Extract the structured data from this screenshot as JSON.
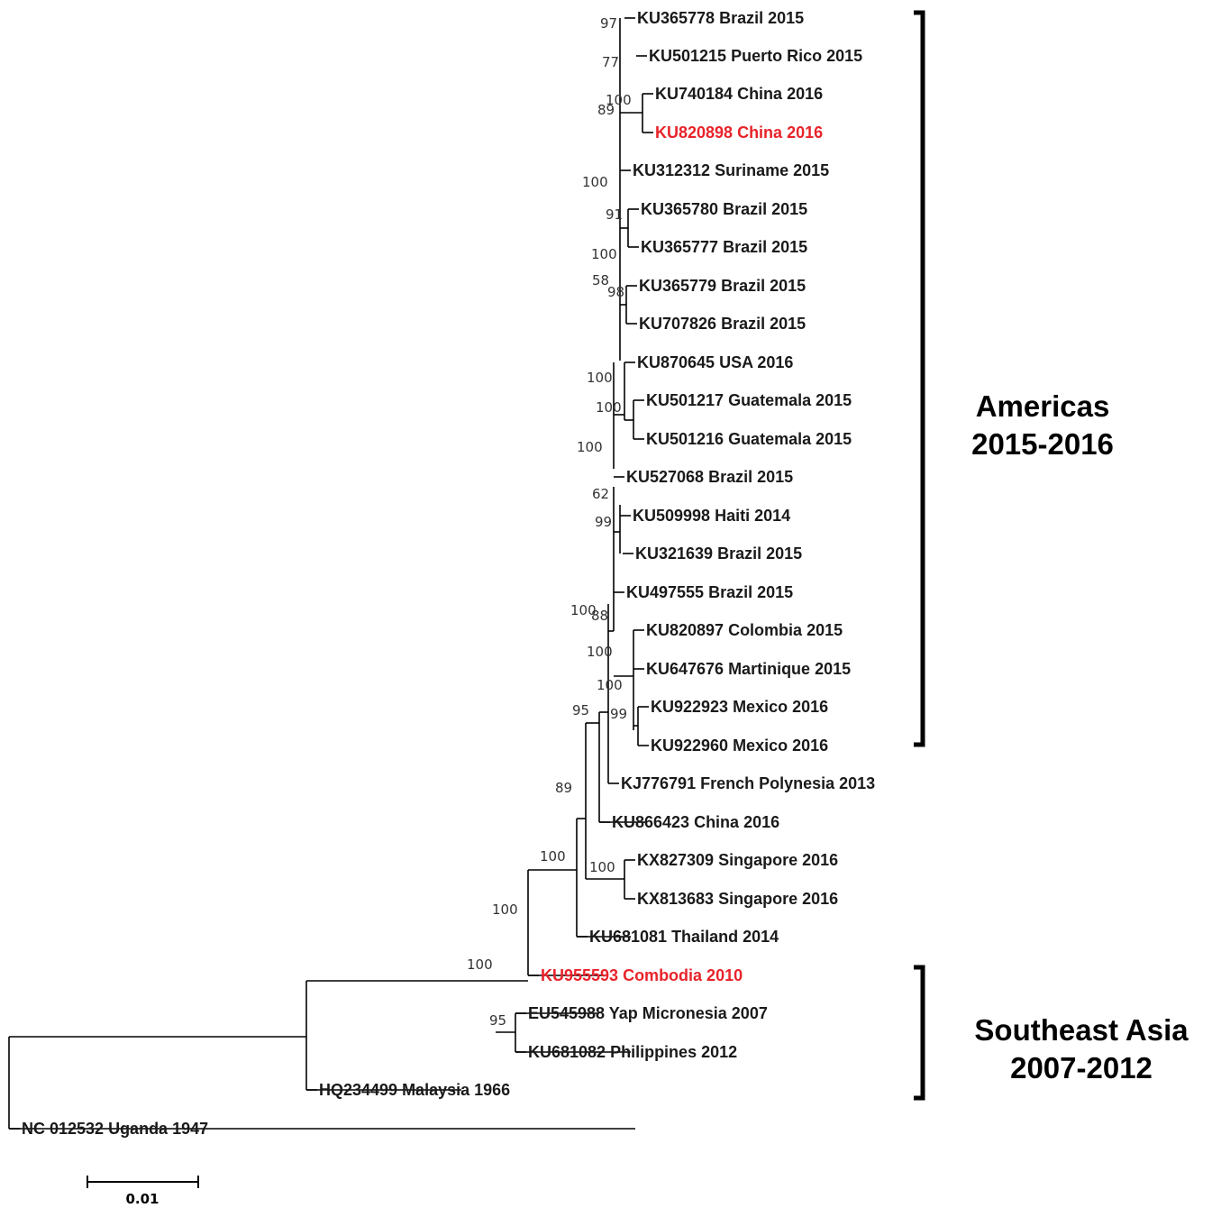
{
  "colors": {
    "default_label": "#1a1a1a",
    "highlight_label": "#e8232a",
    "branch": "#000000"
  },
  "taxa": [
    {
      "id": "KU365778",
      "label": "KU365778 Brazil 2015",
      "highlight": false
    },
    {
      "id": "KU501215",
      "label": "KU501215 Puerto Rico 2015",
      "highlight": false
    },
    {
      "id": "KU740184",
      "label": "KU740184 China 2016",
      "highlight": false
    },
    {
      "id": "KU820898",
      "label": "KU820898 China 2016",
      "highlight": true
    },
    {
      "id": "KU312312",
      "label": "KU312312 Suriname 2015",
      "highlight": false
    },
    {
      "id": "KU365780",
      "label": "KU365780 Brazil 2015",
      "highlight": false
    },
    {
      "id": "KU365777",
      "label": "KU365777 Brazil 2015",
      "highlight": false
    },
    {
      "id": "KU365779",
      "label": "KU365779 Brazil 2015",
      "highlight": false
    },
    {
      "id": "KU707826",
      "label": "KU707826 Brazil 2015",
      "highlight": false
    },
    {
      "id": "KU870645",
      "label": "KU870645 USA 2016",
      "highlight": false
    },
    {
      "id": "KU501217",
      "label": "KU501217 Guatemala 2015",
      "highlight": false
    },
    {
      "id": "KU501216",
      "label": "KU501216 Guatemala 2015",
      "highlight": false
    },
    {
      "id": "KU527068",
      "label": "KU527068 Brazil 2015",
      "highlight": false
    },
    {
      "id": "KU509998",
      "label": "KU509998 Haiti 2014",
      "highlight": false
    },
    {
      "id": "KU321639",
      "label": "KU321639 Brazil 2015",
      "highlight": false
    },
    {
      "id": "KU497555",
      "label": "KU497555 Brazil 2015",
      "highlight": false
    },
    {
      "id": "KU820897",
      "label": "KU820897 Colombia 2015",
      "highlight": false
    },
    {
      "id": "KU647676",
      "label": "KU647676 Martinique 2015",
      "highlight": false
    },
    {
      "id": "KU922923",
      "label": "KU922923 Mexico 2016",
      "highlight": false
    },
    {
      "id": "KU922960",
      "label": "KU922960 Mexico 2016",
      "highlight": false
    },
    {
      "id": "KJ776791",
      "label": "KJ776791 French Polynesia 2013",
      "highlight": false
    },
    {
      "id": "KU866423",
      "label": "KU866423 China 2016",
      "highlight": false
    },
    {
      "id": "KX827309",
      "label": "KX827309 Singapore 2016",
      "highlight": false
    },
    {
      "id": "KX813683",
      "label": "KX813683 Singapore 2016",
      "highlight": false
    },
    {
      "id": "KU681081",
      "label": "KU681081 Thailand 2014",
      "highlight": false
    },
    {
      "id": "KU955593",
      "label": "KU955593 Combodia 2010",
      "highlight": true
    },
    {
      "id": "EU545988",
      "label": "EU545988 Yap Micronesia 2007",
      "highlight": false
    },
    {
      "id": "KU681082",
      "label": "KU681082 Philippines 2012",
      "highlight": false
    },
    {
      "id": "HQ234499",
      "label": "HQ234499 Malaysia 1966",
      "highlight": false
    },
    {
      "id": "NC012532",
      "label": "NC 012532 Uganda 1947",
      "highlight": false
    }
  ],
  "support_values": [
    "97",
    "77",
    "100",
    "89",
    "100",
    "91",
    "100",
    "58",
    "98",
    "100",
    "100",
    "100",
    "62",
    "99",
    "100",
    "88",
    "100",
    "100",
    "99",
    "95",
    "89",
    "100",
    "100",
    "100",
    "100",
    "95"
  ],
  "groups": [
    {
      "title": "Americas",
      "years": "2015-2016"
    },
    {
      "title": "Southeast Asia",
      "years": "2007-2012"
    }
  ],
  "scale": {
    "label": "0.01"
  }
}
